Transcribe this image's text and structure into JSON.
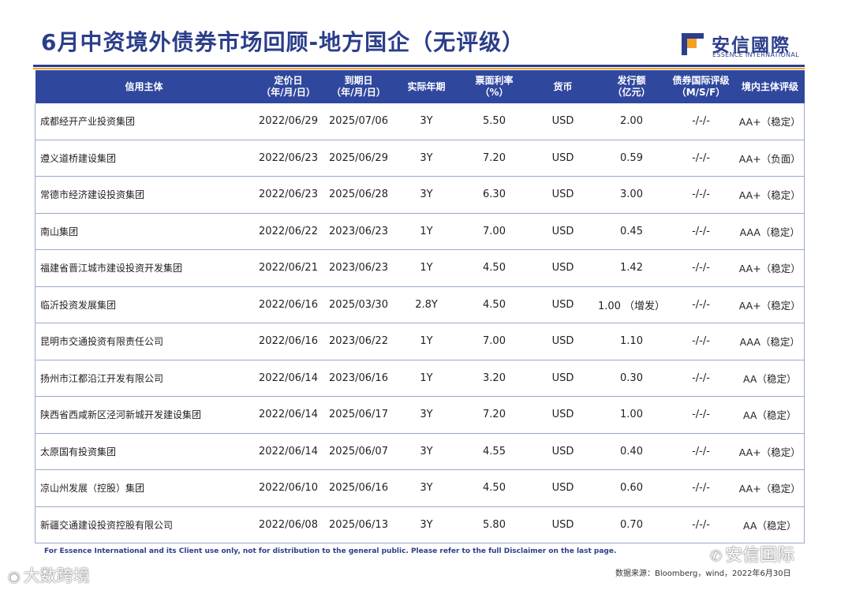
{
  "header": {
    "title": "6月中资境外债券市场回顾-地方国企（无评级）",
    "logo_cn": "安信國際",
    "logo_en": "ESSENCE INTERNATIONAL",
    "brand_blue": "#2b3e8a",
    "brand_orange": "#f0a126"
  },
  "table": {
    "columns": [
      {
        "line1": "信用主体",
        "line2": ""
      },
      {
        "line1": "定价日",
        "line2": "（年/月/日）"
      },
      {
        "line1": "到期日",
        "line2": "（年/月/日）"
      },
      {
        "line1": "实际年期",
        "line2": ""
      },
      {
        "line1": "票面利率",
        "line2": "（%）"
      },
      {
        "line1": "货币",
        "line2": ""
      },
      {
        "line1": "发行额",
        "line2": "（亿元）"
      },
      {
        "line1": "债券国际评级",
        "line2": "（M/S/F）"
      },
      {
        "line1": "境内主体评级",
        "line2": ""
      }
    ],
    "rows": [
      [
        "成都经开产业投资集团",
        "2022/06/29",
        "2025/07/06",
        "3Y",
        "5.50",
        "USD",
        "2.00",
        "-/-/-",
        "AA+（稳定）"
      ],
      [
        "遵义道桥建设集团",
        "2022/06/23",
        "2025/06/29",
        "3Y",
        "7.20",
        "USD",
        "0.59",
        "-/-/-",
        "AA+（负面）"
      ],
      [
        "常德市经济建设投资集团",
        "2022/06/23",
        "2025/06/28",
        "3Y",
        "6.30",
        "USD",
        "3.00",
        "-/-/-",
        "AA+（稳定）"
      ],
      [
        "南山集团",
        "2022/06/22",
        "2023/06/23",
        "1Y",
        "7.00",
        "USD",
        "0.45",
        "-/-/-",
        "AAA（稳定）"
      ],
      [
        "福建省晋江城市建设投资开发集团",
        "2022/06/21",
        "2023/06/23",
        "1Y",
        "4.50",
        "USD",
        "1.42",
        "-/-/-",
        "AA+（稳定）"
      ],
      [
        "临沂投资发展集团",
        "2022/06/16",
        "2025/03/30",
        "2.8Y",
        "4.50",
        "USD",
        "1.00 （增发）",
        "-/-/-",
        "AA+（稳定）"
      ],
      [
        "昆明市交通投资有限责任公司",
        "2022/06/16",
        "2023/06/22",
        "1Y",
        "7.00",
        "USD",
        "1.10",
        "-/-/-",
        "AAA（稳定）"
      ],
      [
        "扬州市江都沿江开发有限公司",
        "2022/06/14",
        "2023/06/16",
        "1Y",
        "3.20",
        "USD",
        "0.30",
        "-/-/-",
        "AA（稳定）"
      ],
      [
        "陕西省西咸新区泾河新城开发建设集团",
        "2022/06/14",
        "2025/06/17",
        "3Y",
        "7.20",
        "USD",
        "1.00",
        "-/-/-",
        "AA（稳定）"
      ],
      [
        "太原国有投资集团",
        "2022/06/14",
        "2025/06/07",
        "3Y",
        "4.55",
        "USD",
        "0.40",
        "-/-/-",
        "AA+（稳定）"
      ],
      [
        "凉山州发展（控股）集团",
        "2022/06/10",
        "2025/06/16",
        "3Y",
        "4.50",
        "USD",
        "0.60",
        "-/-/-",
        "AA+（稳定）"
      ],
      [
        "新疆交通建设投资控股有限公司",
        "2022/06/08",
        "2025/06/13",
        "3Y",
        "5.80",
        "USD",
        "0.70",
        "-/-/-",
        "AA（稳定）"
      ]
    ]
  },
  "footer": {
    "disclaimer": "For Essence International and its Client use only, not for distribution to the general public. Please refer to the full Disclaimer on the last page.",
    "source": "数据来源：Bloomberg，wind，2022年6月30日",
    "watermark_right": "安信国际",
    "watermark_left": "大数跨境"
  }
}
